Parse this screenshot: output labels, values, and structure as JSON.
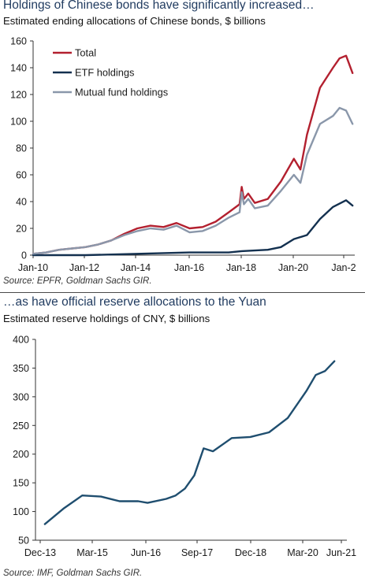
{
  "chart_data": [
    {
      "type": "line",
      "title": "Holdings of Chinese bonds have significantly increased…",
      "subtitle": "Estimated ending allocations of Chinese bonds, $ billions",
      "source": "Source: EPFR, Goldman Sachs GIR.",
      "x_tick_labels": [
        "Jan-10",
        "Jan-12",
        "Jan-14",
        "Jan-16",
        "Jan-18",
        "Jan-20",
        "Jan-2"
      ],
      "y_ticks": [
        0,
        20,
        40,
        60,
        80,
        100,
        120,
        140,
        160
      ],
      "ylim": [
        0,
        160
      ],
      "legend_position": "top-left",
      "grid": false,
      "series": [
        {
          "name": "Total",
          "color": "#b3202f",
          "points": [
            [
              "2010-01",
              1
            ],
            [
              "2010-07",
              2
            ],
            [
              "2011-01",
              4
            ],
            [
              "2011-07",
              5
            ],
            [
              "2012-01",
              6
            ],
            [
              "2012-07",
              8
            ],
            [
              "2013-01",
              11
            ],
            [
              "2013-07",
              16
            ],
            [
              "2014-01",
              20
            ],
            [
              "2014-07",
              22
            ],
            [
              "2015-01",
              21
            ],
            [
              "2015-07",
              24
            ],
            [
              "2016-01",
              20
            ],
            [
              "2016-07",
              21
            ],
            [
              "2017-01",
              25
            ],
            [
              "2017-07",
              32
            ],
            [
              "2017-12",
              38
            ],
            [
              "2018-01",
              51
            ],
            [
              "2018-02",
              42
            ],
            [
              "2018-04",
              46
            ],
            [
              "2018-07",
              39
            ],
            [
              "2019-01",
              42
            ],
            [
              "2019-07",
              55
            ],
            [
              "2020-01",
              72
            ],
            [
              "2020-04",
              64
            ],
            [
              "2020-07",
              90
            ],
            [
              "2021-01",
              125
            ],
            [
              "2021-07",
              140
            ],
            [
              "2021-10",
              147
            ],
            [
              "2022-01",
              149
            ],
            [
              "2022-04",
              136
            ]
          ]
        },
        {
          "name": "ETF holdings",
          "color": "#13304f",
          "points": [
            [
              "2010-01",
              0
            ],
            [
              "2012-01",
              0
            ],
            [
              "2014-01",
              1
            ],
            [
              "2016-01",
              2
            ],
            [
              "2017-07",
              2
            ],
            [
              "2018-01",
              3
            ],
            [
              "2019-01",
              4
            ],
            [
              "2019-07",
              6
            ],
            [
              "2020-01",
              12
            ],
            [
              "2020-07",
              15
            ],
            [
              "2021-01",
              27
            ],
            [
              "2021-07",
              36
            ],
            [
              "2022-01",
              41
            ],
            [
              "2022-04",
              37
            ]
          ]
        },
        {
          "name": "Mutual fund holdings",
          "color": "#8a97aa",
          "points": [
            [
              "2010-01",
              1
            ],
            [
              "2010-07",
              2
            ],
            [
              "2011-01",
              4
            ],
            [
              "2011-07",
              5
            ],
            [
              "2012-01",
              6
            ],
            [
              "2012-07",
              8
            ],
            [
              "2013-01",
              11
            ],
            [
              "2013-07",
              15
            ],
            [
              "2014-01",
              18
            ],
            [
              "2014-07",
              20
            ],
            [
              "2015-01",
              19
            ],
            [
              "2015-07",
              22
            ],
            [
              "2016-01",
              17
            ],
            [
              "2016-07",
              18
            ],
            [
              "2017-01",
              22
            ],
            [
              "2017-07",
              28
            ],
            [
              "2017-12",
              32
            ],
            [
              "2018-01",
              47
            ],
            [
              "2018-02",
              38
            ],
            [
              "2018-04",
              42
            ],
            [
              "2018-07",
              35
            ],
            [
              "2019-01",
              37
            ],
            [
              "2019-07",
              48
            ],
            [
              "2020-01",
              60
            ],
            [
              "2020-04",
              54
            ],
            [
              "2020-07",
              75
            ],
            [
              "2021-01",
              98
            ],
            [
              "2021-07",
              104
            ],
            [
              "2021-10",
              110
            ],
            [
              "2022-01",
              108
            ],
            [
              "2022-04",
              98
            ]
          ]
        }
      ]
    },
    {
      "type": "line",
      "title": "…as have official reserve allocations to the Yuan",
      "subtitle": "Estimated reserve holdings of CNY, $ billions",
      "source": "Source: IMF, Goldman Sachs GIR.",
      "x_tick_labels": [
        "Dec-13",
        "Mar-15",
        "Jun-16",
        "Sep-17",
        "Dec-18",
        "Mar-20",
        "Jun-21"
      ],
      "y_ticks": [
        50,
        100,
        150,
        200,
        250,
        300,
        350,
        400
      ],
      "ylim": [
        50,
        400
      ],
      "grid": false,
      "series": [
        {
          "color": "#1f4e6f",
          "points": [
            [
              "2013-12",
              78
            ],
            [
              "2014-06",
              105
            ],
            [
              "2014-12",
              128
            ],
            [
              "2015-06",
              126
            ],
            [
              "2015-12",
              118
            ],
            [
              "2016-06",
              118
            ],
            [
              "2016-09",
              115
            ],
            [
              "2017-03",
              122
            ],
            [
              "2017-06",
              128
            ],
            [
              "2017-09",
              140
            ],
            [
              "2017-12",
              163
            ],
            [
              "2018-03",
              210
            ],
            [
              "2018-06",
              205
            ],
            [
              "2018-12",
              228
            ],
            [
              "2019-06",
              230
            ],
            [
              "2019-12",
              238
            ],
            [
              "2020-06",
              263
            ],
            [
              "2020-12",
              310
            ],
            [
              "2021-03",
              338
            ],
            [
              "2021-06",
              345
            ],
            [
              "2021-09",
              362
            ]
          ]
        }
      ]
    }
  ]
}
